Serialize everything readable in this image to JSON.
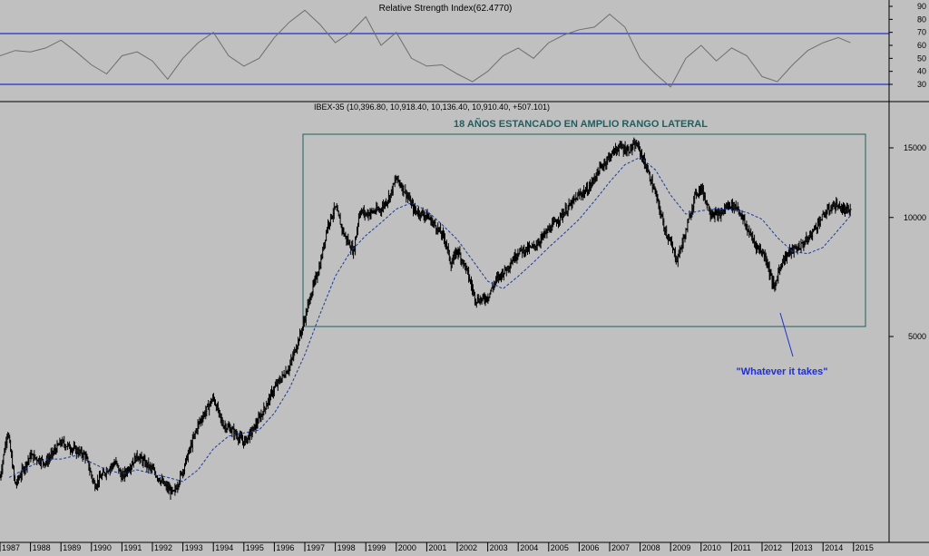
{
  "colors": {
    "background": "#c0c0c0",
    "bars": "#000000",
    "moving_average": "#1a3a9e",
    "rsi_line": "#6e6e6e",
    "rsi_levels": "#1f2fd0",
    "range_box": "#1f5f5f",
    "title_text": "#1f5f5f",
    "annotation_text": "#1f2fd0"
  },
  "chart_data": [
    {
      "type": "line",
      "title": "Relative Strength Index(62.4770)",
      "ylim": [
        20,
        95
      ],
      "yticks": [
        "90",
        "80",
        "70",
        "60",
        "50",
        "40",
        "30"
      ],
      "yticks_values": [
        90,
        80,
        70,
        60,
        50,
        40,
        30
      ],
      "levels": [
        70,
        30
      ],
      "series": [
        {
          "x": [
            1987.0,
            1987.5,
            1988.0,
            1988.5,
            1989.0,
            1989.5,
            1990.0,
            1990.5,
            1991.0,
            1991.5,
            1992.0,
            1992.5,
            1993.0,
            1993.5,
            1994.0,
            1994.5,
            1995.0,
            1995.5,
            1996.0,
            1996.5,
            1997.0,
            1997.5,
            1998.0,
            1998.5,
            1999.0,
            1999.5,
            2000.0,
            2000.5,
            2001.0,
            2001.5,
            2002.0,
            2002.5,
            2003.0,
            2003.5,
            2004.0,
            2004.5,
            2005.0,
            2005.5,
            2006.0,
            2006.5,
            2007.0,
            2007.5,
            2008.0,
            2008.5,
            2009.0,
            2009.5,
            2010.0,
            2010.5,
            2011.0,
            2011.5,
            2012.0,
            2012.5,
            2013.0,
            2013.5,
            2014.0,
            2014.5,
            2014.9
          ],
          "values": [
            52,
            56,
            55,
            58,
            64,
            55,
            45,
            38,
            52,
            55,
            48,
            34,
            50,
            62,
            70,
            52,
            44,
            50,
            66,
            78,
            87,
            76,
            62,
            70,
            82,
            60,
            70,
            50,
            44,
            45,
            38,
            32,
            40,
            52,
            58,
            50,
            62,
            68,
            72,
            74,
            84,
            74,
            50,
            38,
            28,
            50,
            60,
            48,
            58,
            52,
            36,
            32,
            45,
            56,
            62,
            66,
            62
          ]
        }
      ]
    },
    {
      "type": "line",
      "title": "18 AÑOS ESTANCADO EN AMPLIO RANGO LATERAL",
      "legend_text": "IBEX-35 (10,396.80, 10,918.40, 10,136.40, 10,910.40, +507.101)",
      "annotation": "\"Whatever it takes\"",
      "scale": "log",
      "ylim": [
        1500,
        18500
      ],
      "yticks": [
        "15000",
        "10000",
        "5000"
      ],
      "yticks_values": [
        15000,
        10000,
        5000
      ],
      "xticks": [
        "1987",
        "1988",
        "1989",
        "1990",
        "1991",
        "1992",
        "1993",
        "1994",
        "1995",
        "1996",
        "1997",
        "1998",
        "1999",
        "2000",
        "2001",
        "2002",
        "2003",
        "2004",
        "2005",
        "2006",
        "2007",
        "2008",
        "2009",
        "2010",
        "2011",
        "2012",
        "2013",
        "2014",
        "2015"
      ],
      "series": [
        {
          "name": "IBEX-35",
          "kind": "price",
          "x": [
            1987.0,
            1987.25,
            1987.5,
            1987.75,
            1988.0,
            1988.5,
            1989.0,
            1989.4,
            1989.8,
            1990.1,
            1990.5,
            1990.8,
            1991.0,
            1991.5,
            1992.0,
            1992.4,
            1992.7,
            1993.0,
            1993.5,
            1994.0,
            1994.3,
            1994.6,
            1995.0,
            1995.3,
            1995.6,
            1996.0,
            1996.5,
            1996.9,
            1997.2,
            1997.5,
            1997.75,
            1998.0,
            1998.3,
            1998.6,
            1998.8,
            1999.0,
            1999.5,
            1999.8,
            2000.0,
            2000.3,
            2000.6,
            2001.0,
            2001.3,
            2001.6,
            2001.8,
            2002.0,
            2002.3,
            2002.6,
            2002.8,
            2003.0,
            2003.3,
            2003.6,
            2004.0,
            2004.5,
            2005.0,
            2005.5,
            2006.0,
            2006.3,
            2006.6,
            2007.0,
            2007.3,
            2007.6,
            2007.9,
            2008.2,
            2008.5,
            2008.8,
            2009.0,
            2009.2,
            2009.5,
            2009.8,
            2010.0,
            2010.3,
            2010.6,
            2010.9,
            2011.2,
            2011.5,
            2011.8,
            2012.1,
            2012.4,
            2012.6,
            2012.9,
            2013.2,
            2013.5,
            2013.8,
            2014.1,
            2014.4,
            2014.7,
            2014.9
          ],
          "values": [
            2200,
            2900,
            2100,
            2300,
            2500,
            2400,
            2700,
            2600,
            2500,
            2100,
            2300,
            2400,
            2200,
            2500,
            2300,
            2100,
            2000,
            2300,
            3000,
            3500,
            3000,
            2900,
            2700,
            2900,
            3200,
            3700,
            4200,
            5200,
            6400,
            7600,
            9600,
            10600,
            9000,
            8200,
            10400,
            10200,
            10500,
            11400,
            12600,
            11600,
            10400,
            10100,
            9500,
            8800,
            7600,
            8300,
            7400,
            6200,
            6200,
            6300,
            7000,
            7400,
            8200,
            8400,
            9300,
            10300,
            11400,
            11800,
            13000,
            14300,
            15100,
            14800,
            15300,
            13400,
            11500,
            9400,
            8600,
            7800,
            9200,
            11400,
            11900,
            10300,
            10100,
            10800,
            10600,
            9400,
            8500,
            8000,
            6600,
            7600,
            8200,
            8400,
            8800,
            9600,
            10300,
            10800,
            10400,
            10400
          ]
        },
        {
          "name": "moving average",
          "kind": "ma",
          "x": [
            1987.3,
            1988.0,
            1988.5,
            1989.0,
            1989.5,
            1990.0,
            1990.5,
            1991.0,
            1991.5,
            1992.0,
            1992.5,
            1993.0,
            1993.5,
            1994.0,
            1994.5,
            1995.0,
            1995.5,
            1996.0,
            1996.5,
            1997.0,
            1997.5,
            1998.0,
            1998.5,
            1999.0,
            1999.5,
            2000.0,
            2000.5,
            2001.0,
            2001.5,
            2002.0,
            2002.5,
            2003.0,
            2003.5,
            2004.0,
            2004.5,
            2005.0,
            2005.5,
            2006.0,
            2006.5,
            2007.0,
            2007.5,
            2008.0,
            2008.5,
            2009.0,
            2009.5,
            2010.0,
            2010.5,
            2011.0,
            2011.5,
            2012.0,
            2012.5,
            2013.0,
            2013.5,
            2014.0,
            2014.5,
            2014.9
          ],
          "values": [
            2200,
            2350,
            2450,
            2450,
            2500,
            2400,
            2300,
            2250,
            2300,
            2250,
            2200,
            2150,
            2300,
            2600,
            2800,
            2850,
            2900,
            3200,
            3700,
            4500,
            5700,
            7100,
            8200,
            9000,
            9700,
            10500,
            10900,
            10400,
            9600,
            8800,
            7800,
            6900,
            6600,
            7100,
            7700,
            8400,
            9100,
            9900,
            11000,
            12300,
            13600,
            14200,
            13200,
            11400,
            10200,
            10400,
            10500,
            10500,
            10300,
            9900,
            8900,
            8200,
            8100,
            8400,
            9300,
            10100
          ]
        }
      ]
    }
  ]
}
